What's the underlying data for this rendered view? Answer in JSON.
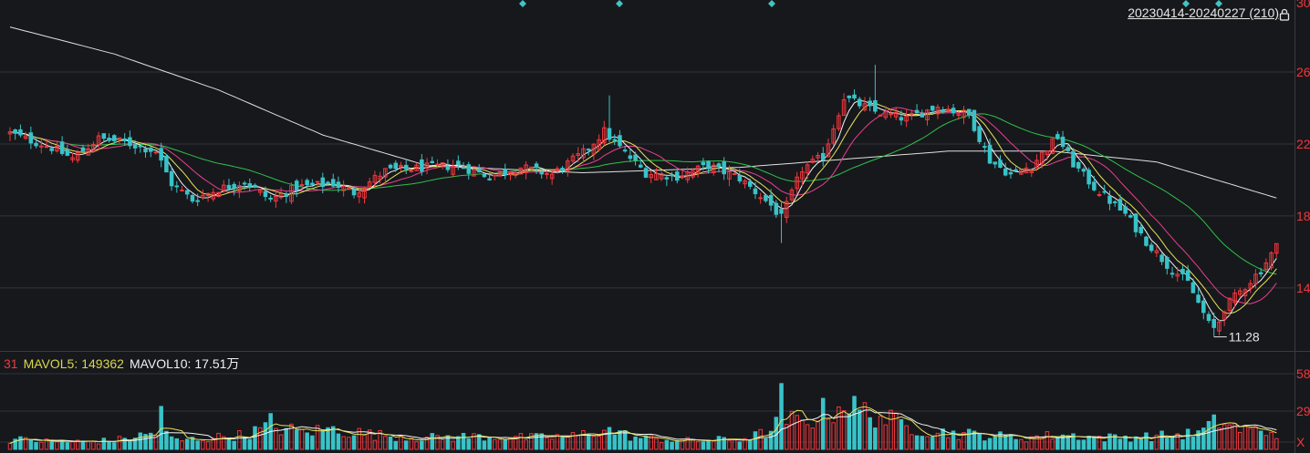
{
  "header": {
    "range_label": "20230414-20240227 (210)"
  },
  "volume_legend": {
    "vol_value": "31",
    "mavol5_label": "MAVOL5:",
    "mavol5_value": "149362",
    "mavol10_label": "MAVOL10:",
    "mavol10_value": "17.51万"
  },
  "colors": {
    "background": "#17181c",
    "grid": "#33343a",
    "axis_text": "#f0383d",
    "up_candle": "#f0383d",
    "down_candle": "#38c3c8",
    "ma5": "#f5f5f5",
    "ma10": "#e6e35a",
    "ma20": "#e8408e",
    "ma60": "#2ec24a",
    "ma120": "#e0e0e0",
    "marker": "#3ec6c4",
    "mavol5": "#e6e35a",
    "mavol10": "#f5f5f5"
  },
  "chart_data": {
    "type": "candlestick",
    "period_start": "20230414",
    "period_end": "20240227",
    "bar_count": 210,
    "price_axis_ticks": [
      "30",
      "26",
      "22",
      "18",
      "14"
    ],
    "volume_axis_ticks": [
      "58",
      "29",
      "X"
    ],
    "ylim": [
      10.5,
      30
    ],
    "min_price_annotation": "11.28",
    "min_price": 11.28,
    "series_lines": [
      "ma5",
      "ma10",
      "ma20",
      "ma60",
      "ma120"
    ],
    "price_anchors": [
      [
        0,
        22.6
      ],
      [
        8,
        21.8
      ],
      [
        12,
        21.2
      ],
      [
        17,
        22.3
      ],
      [
        22,
        22.1
      ],
      [
        28,
        21.6
      ],
      [
        31,
        19.8
      ],
      [
        35,
        18.9
      ],
      [
        40,
        19.5
      ],
      [
        45,
        19.9
      ],
      [
        50,
        18.9
      ],
      [
        55,
        19.6
      ],
      [
        62,
        19.8
      ],
      [
        66,
        19.3
      ],
      [
        72,
        20.5
      ],
      [
        80,
        20.7
      ],
      [
        86,
        20.8
      ],
      [
        92,
        20.2
      ],
      [
        98,
        20.7
      ],
      [
        104,
        20.3
      ],
      [
        110,
        21.5
      ],
      [
        114,
        22.7
      ],
      [
        118,
        21.5
      ],
      [
        122,
        20.4
      ],
      [
        128,
        20.2
      ],
      [
        134,
        20.8
      ],
      [
        140,
        20.1
      ],
      [
        146,
        18.6
      ],
      [
        148,
        17.9
      ],
      [
        152,
        20.6
      ],
      [
        156,
        21.3
      ],
      [
        160,
        24.6
      ],
      [
        166,
        23.8
      ],
      [
        172,
        23.4
      ],
      [
        178,
        24.1
      ],
      [
        184,
        23.6
      ],
      [
        188,
        21.1
      ],
      [
        192,
        20.3
      ],
      [
        196,
        20.8
      ],
      [
        201,
        22.4
      ],
      [
        204,
        20.9
      ],
      [
        208,
        19.6
      ],
      [
        214,
        18.1
      ],
      [
        218,
        16.6
      ],
      [
        222,
        15.3
      ],
      [
        226,
        14.3
      ],
      [
        229,
        12.6
      ],
      [
        231,
        11.4
      ],
      [
        233,
        12.9
      ],
      [
        237,
        14.1
      ],
      [
        240,
        15.0
      ],
      [
        243,
        16.3
      ]
    ],
    "volume_anchors": [
      [
        0,
        7
      ],
      [
        10,
        5
      ],
      [
        20,
        6
      ],
      [
        29,
        12
      ],
      [
        32,
        6
      ],
      [
        45,
        10
      ],
      [
        50,
        16
      ],
      [
        56,
        12
      ],
      [
        62,
        14
      ],
      [
        70,
        10
      ],
      [
        80,
        8
      ],
      [
        90,
        9
      ],
      [
        100,
        8
      ],
      [
        108,
        9
      ],
      [
        114,
        14
      ],
      [
        120,
        8
      ],
      [
        130,
        6
      ],
      [
        140,
        7
      ],
      [
        146,
        12
      ],
      [
        148,
        22
      ],
      [
        152,
        18
      ],
      [
        156,
        26
      ],
      [
        160,
        30
      ],
      [
        166,
        24
      ],
      [
        172,
        16
      ],
      [
        178,
        12
      ],
      [
        186,
        10
      ],
      [
        194,
        8
      ],
      [
        202,
        10
      ],
      [
        210,
        8
      ],
      [
        220,
        9
      ],
      [
        228,
        11
      ],
      [
        232,
        20
      ],
      [
        236,
        14
      ],
      [
        243,
        12
      ]
    ],
    "top_markers_count": 5
  }
}
